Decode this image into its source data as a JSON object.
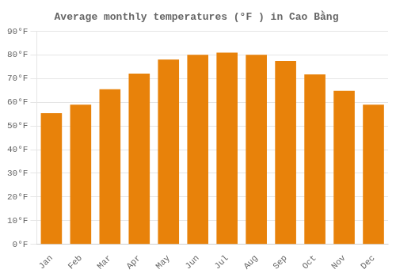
{
  "chart_data": {
    "type": "bar",
    "title": "Average monthly temperatures (°F ) in Cao Bằng",
    "categories": [
      "Jan",
      "Feb",
      "Mar",
      "Apr",
      "May",
      "Jun",
      "Jul",
      "Aug",
      "Sep",
      "Oct",
      "Nov",
      "Dec"
    ],
    "values": [
      55.4,
      59.0,
      65.5,
      72.1,
      78.1,
      80.1,
      81.0,
      80.1,
      77.5,
      71.8,
      64.9,
      59.0
    ],
    "color": "#E8820A",
    "ylim": [
      0,
      90
    ],
    "yticks": [
      {
        "value": 0,
        "label": "0°F"
      },
      {
        "value": 10,
        "label": "10°F"
      },
      {
        "value": 20,
        "label": "20°F"
      },
      {
        "value": 30,
        "label": "30°F"
      },
      {
        "value": 40,
        "label": "40°F"
      },
      {
        "value": 50,
        "label": "50°F"
      },
      {
        "value": 60,
        "label": "60°F"
      },
      {
        "value": 70,
        "label": "70°F"
      },
      {
        "value": 80,
        "label": "80°F"
      },
      {
        "value": 90,
        "label": "90°F"
      }
    ],
    "grid": true
  }
}
